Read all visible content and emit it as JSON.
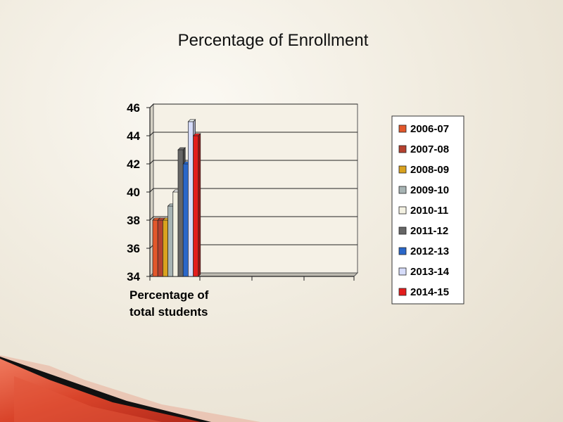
{
  "slide": {
    "title": "Percentage of Enrollment"
  },
  "chart_data": {
    "type": "bar",
    "title": "Percentage of Enrollment",
    "categories": [
      "Percentage of total students"
    ],
    "category_lines": [
      "Percentage of",
      "total students"
    ],
    "series": [
      {
        "name": "2006-07",
        "values": [
          38
        ],
        "color": "#e2572b"
      },
      {
        "name": "2007-08",
        "values": [
          38
        ],
        "color": "#b5412f"
      },
      {
        "name": "2008-09",
        "values": [
          38
        ],
        "color": "#d9a21f"
      },
      {
        "name": "2009-10",
        "values": [
          39
        ],
        "color": "#a7b4b4"
      },
      {
        "name": "2010-11",
        "values": [
          40
        ],
        "color": "#f3f1e2"
      },
      {
        "name": "2011-12",
        "values": [
          43
        ],
        "color": "#666666"
      },
      {
        "name": "2012-13",
        "values": [
          42
        ],
        "color": "#2a67c9"
      },
      {
        "name": "2013-14",
        "values": [
          45
        ],
        "color": "#d6dcfa"
      },
      {
        "name": "2014-15",
        "values": [
          44
        ],
        "color": "#e31d1d"
      }
    ],
    "ylim": [
      34,
      46
    ],
    "yticks": [
      34,
      36,
      38,
      40,
      42,
      44,
      46
    ],
    "xlabel": "",
    "ylabel": "",
    "grid": true,
    "legend": "right"
  }
}
